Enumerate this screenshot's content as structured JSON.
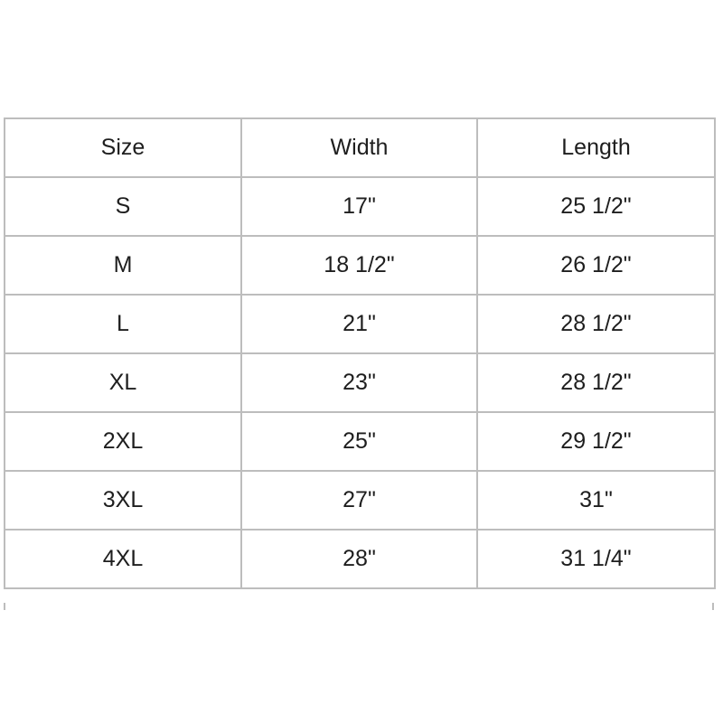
{
  "table": {
    "headers": [
      "Size",
      "Width",
      "Length"
    ],
    "rows": [
      [
        "S",
        "17\"",
        "25 1/2\""
      ],
      [
        "M",
        "18 1/2\"",
        "26 1/2\""
      ],
      [
        "L",
        "21\"",
        "28 1/2\""
      ],
      [
        "XL",
        "23\"",
        "28 1/2\""
      ],
      [
        "2XL",
        "25\"",
        "29 1/2\""
      ],
      [
        "3XL",
        "27\"",
        "31\""
      ],
      [
        "4XL",
        "28\"",
        "31 1/4\""
      ]
    ]
  }
}
